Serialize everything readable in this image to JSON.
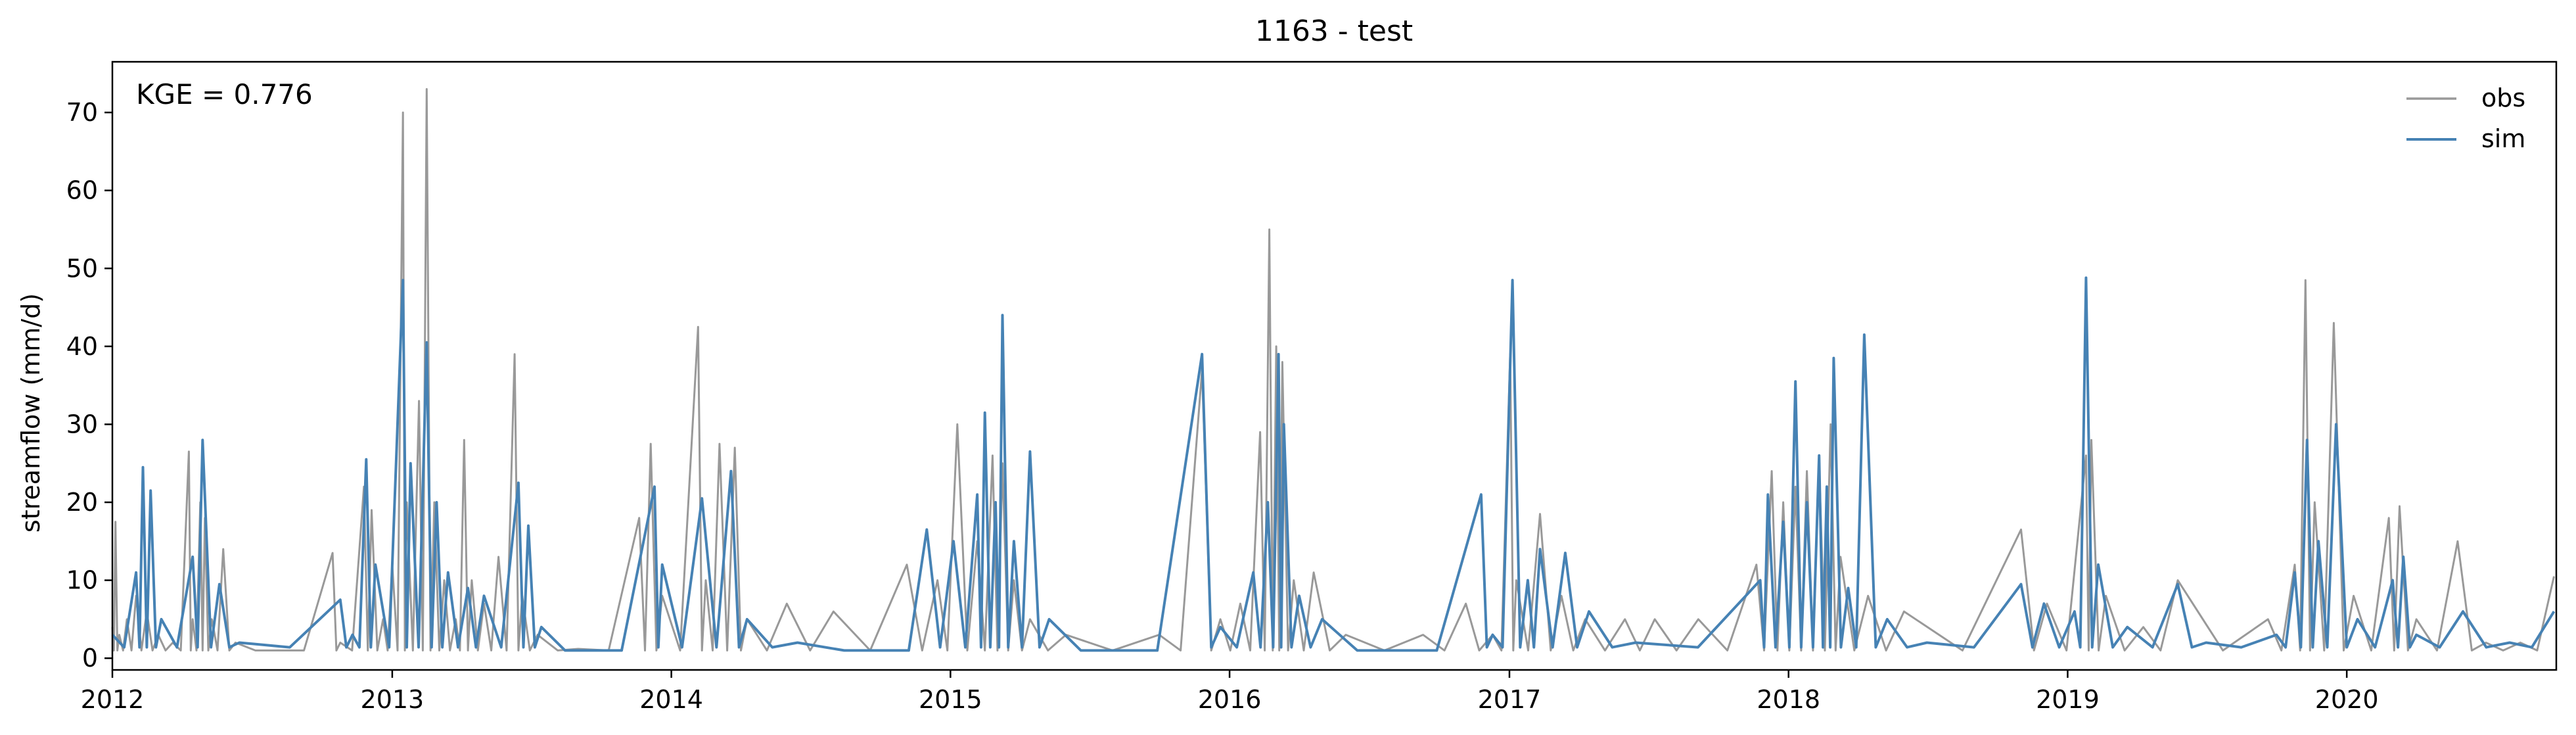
{
  "chart_data": {
    "type": "line",
    "title": "1163 - test",
    "ylabel": "streamflow (mm/d)",
    "xlabel": "",
    "annotation": "KGE = 0.776",
    "xlim": [
      "2012-01-01",
      "2020-10-01"
    ],
    "ylim": [
      -1.5,
      76.5
    ],
    "x_ticks": [
      "2012",
      "2013",
      "2014",
      "2015",
      "2016",
      "2017",
      "2018",
      "2019",
      "2020"
    ],
    "y_ticks": [
      0,
      10,
      20,
      30,
      40,
      50,
      60,
      70
    ],
    "legend_position": "top-right",
    "grid": false,
    "series": [
      {
        "name": "obs",
        "color": "#999999",
        "points": [
          [
            "2012-01-01",
            4
          ],
          [
            "2012-01-05",
            17.5
          ],
          [
            "2012-01-10",
            3
          ],
          [
            "2012-01-20",
            5
          ],
          [
            "2012-02-01",
            8
          ],
          [
            "2012-02-15",
            6
          ],
          [
            "2012-03-01",
            3
          ],
          [
            "2012-03-20",
            2
          ],
          [
            "2012-04-10",
            26.5
          ],
          [
            "2012-04-15",
            5
          ],
          [
            "2012-04-25",
            20
          ],
          [
            "2012-05-01",
            18
          ],
          [
            "2012-05-10",
            5
          ],
          [
            "2012-05-25",
            14
          ],
          [
            "2012-06-10",
            2
          ],
          [
            "2012-08-01",
            1
          ],
          [
            "2012-10-15",
            13.5
          ],
          [
            "2012-10-25",
            2
          ],
          [
            "2012-11-25",
            22
          ],
          [
            "2012-12-05",
            19
          ],
          [
            "2012-12-20",
            5
          ],
          [
            "2013-01-01",
            12
          ],
          [
            "2013-01-15",
            70
          ],
          [
            "2013-01-20",
            20
          ],
          [
            "2013-02-05",
            33
          ],
          [
            "2013-02-15",
            73
          ],
          [
            "2013-02-25",
            20
          ],
          [
            "2013-03-10",
            10
          ],
          [
            "2013-03-25",
            5
          ],
          [
            "2013-04-05",
            28
          ],
          [
            "2013-04-15",
            10
          ],
          [
            "2013-05-01",
            7
          ],
          [
            "2013-05-20",
            13
          ],
          [
            "2013-06-10",
            39
          ],
          [
            "2013-06-20",
            8
          ],
          [
            "2013-07-10",
            3
          ],
          [
            "2013-09-01",
            1.2
          ],
          [
            "2013-11-20",
            18
          ],
          [
            "2013-12-05",
            27.5
          ],
          [
            "2013-12-20",
            8
          ],
          [
            "2014-02-05",
            42.5
          ],
          [
            "2014-02-15",
            10
          ],
          [
            "2014-03-05",
            27.5
          ],
          [
            "2014-03-25",
            27
          ],
          [
            "2014-04-10",
            5
          ],
          [
            "2014-06-01",
            7
          ],
          [
            "2014-08-01",
            6
          ],
          [
            "2014-11-05",
            12
          ],
          [
            "2014-12-15",
            10
          ],
          [
            "2015-01-10",
            30
          ],
          [
            "2015-02-05",
            15
          ],
          [
            "2015-02-25",
            26
          ],
          [
            "2015-03-10",
            25
          ],
          [
            "2015-03-25",
            10
          ],
          [
            "2015-04-15",
            5
          ],
          [
            "2015-06-01",
            3
          ],
          [
            "2015-10-01",
            3
          ],
          [
            "2015-11-26",
            37
          ],
          [
            "2015-12-20",
            5
          ],
          [
            "2016-01-15",
            7
          ],
          [
            "2016-02-10",
            29
          ],
          [
            "2016-02-22",
            55
          ],
          [
            "2016-03-02",
            40
          ],
          [
            "2016-03-10",
            38
          ],
          [
            "2016-03-25",
            10
          ],
          [
            "2016-04-20",
            11
          ],
          [
            "2016-06-01",
            3
          ],
          [
            "2016-09-10",
            3
          ],
          [
            "2016-11-05",
            7
          ],
          [
            "2016-12-10",
            3
          ],
          [
            "2017-01-02",
            39
          ],
          [
            "2017-01-10",
            10
          ],
          [
            "2017-02-10",
            18.5
          ],
          [
            "2017-03-10",
            8
          ],
          [
            "2017-04-10",
            5
          ],
          [
            "2017-06-01",
            5
          ],
          [
            "2017-07-10",
            5
          ],
          [
            "2017-09-05",
            5
          ],
          [
            "2017-11-20",
            12
          ],
          [
            "2017-12-10",
            24
          ],
          [
            "2017-12-25",
            20
          ],
          [
            "2018-01-10",
            22
          ],
          [
            "2018-01-25",
            24
          ],
          [
            "2018-02-10",
            25
          ],
          [
            "2018-02-25",
            30
          ],
          [
            "2018-03-10",
            13
          ],
          [
            "2018-04-15",
            8
          ],
          [
            "2018-06-01",
            6
          ],
          [
            "2018-11-01",
            16.5
          ],
          [
            "2018-12-05",
            7
          ],
          [
            "2019-01-25",
            26
          ],
          [
            "2019-02-01",
            28
          ],
          [
            "2019-02-20",
            8
          ],
          [
            "2019-04-10",
            4
          ],
          [
            "2019-05-25",
            10
          ],
          [
            "2019-09-20",
            5
          ],
          [
            "2019-10-25",
            12
          ],
          [
            "2019-11-08",
            48.5
          ],
          [
            "2019-11-20",
            20
          ],
          [
            "2019-12-15",
            43
          ],
          [
            "2020-01-10",
            8
          ],
          [
            "2020-02-25",
            18
          ],
          [
            "2020-03-10",
            19.5
          ],
          [
            "2020-04-01",
            5
          ],
          [
            "2020-05-25",
            15
          ],
          [
            "2020-07-01",
            2
          ],
          [
            "2020-08-15",
            2
          ],
          [
            "2020-09-28",
            10.5
          ]
        ]
      },
      {
        "name": "sim",
        "color": "#4682b4",
        "points": [
          [
            "2012-01-01",
            3
          ],
          [
            "2012-02-01",
            11
          ],
          [
            "2012-02-10",
            24.5
          ],
          [
            "2012-02-20",
            21.5
          ],
          [
            "2012-03-05",
            5
          ],
          [
            "2012-04-15",
            13
          ],
          [
            "2012-04-28",
            28
          ],
          [
            "2012-05-20",
            9.5
          ],
          [
            "2012-06-15",
            2
          ],
          [
            "2012-10-25",
            7.5
          ],
          [
            "2012-11-10",
            3
          ],
          [
            "2012-11-28",
            25.5
          ],
          [
            "2012-12-10",
            12
          ],
          [
            "2013-01-15",
            48.5
          ],
          [
            "2013-01-25",
            25
          ],
          [
            "2013-02-15",
            40.5
          ],
          [
            "2013-02-28",
            20
          ],
          [
            "2013-03-15",
            11
          ],
          [
            "2013-04-10",
            9
          ],
          [
            "2013-05-01",
            8
          ],
          [
            "2013-06-15",
            22.5
          ],
          [
            "2013-06-28",
            17
          ],
          [
            "2013-07-15",
            4
          ],
          [
            "2013-09-15",
            1
          ],
          [
            "2013-12-10",
            22
          ],
          [
            "2013-12-20",
            12
          ],
          [
            "2014-02-10",
            20.5
          ],
          [
            "2014-03-20",
            24
          ],
          [
            "2014-04-10",
            5
          ],
          [
            "2014-06-15",
            2
          ],
          [
            "2014-10-15",
            1
          ],
          [
            "2014-12-01",
            16.5
          ],
          [
            "2015-01-05",
            15
          ],
          [
            "2015-02-05",
            21
          ],
          [
            "2015-02-15",
            31.5
          ],
          [
            "2015-03-01",
            20
          ],
          [
            "2015-03-10",
            44
          ],
          [
            "2015-03-25",
            15
          ],
          [
            "2015-04-15",
            26.5
          ],
          [
            "2015-05-10",
            5
          ],
          [
            "2015-08-01",
            1
          ],
          [
            "2015-11-26",
            39
          ],
          [
            "2015-12-20",
            4
          ],
          [
            "2016-02-01",
            11
          ],
          [
            "2016-02-20",
            20
          ],
          [
            "2016-03-05",
            39
          ],
          [
            "2016-03-12",
            30
          ],
          [
            "2016-04-01",
            8
          ],
          [
            "2016-05-01",
            5
          ],
          [
            "2016-08-01",
            1
          ],
          [
            "2016-11-25",
            21
          ],
          [
            "2016-12-10",
            3
          ],
          [
            "2017-01-05",
            48.5
          ],
          [
            "2017-01-25",
            10
          ],
          [
            "2017-02-10",
            14
          ],
          [
            "2017-03-15",
            13.5
          ],
          [
            "2017-04-15",
            6
          ],
          [
            "2017-06-15",
            2
          ],
          [
            "2017-11-25",
            10
          ],
          [
            "2017-12-05",
            21
          ],
          [
            "2017-12-25",
            17.5
          ],
          [
            "2018-01-10",
            35.5
          ],
          [
            "2018-01-25",
            20
          ],
          [
            "2018-02-10",
            26
          ],
          [
            "2018-02-20",
            22
          ],
          [
            "2018-03-01",
            38.5
          ],
          [
            "2018-03-20",
            9
          ],
          [
            "2018-04-10",
            41.5
          ],
          [
            "2018-05-10",
            5
          ],
          [
            "2018-07-01",
            2
          ],
          [
            "2018-11-01",
            9.5
          ],
          [
            "2018-12-01",
            7
          ],
          [
            "2019-01-10",
            6
          ],
          [
            "2019-01-25",
            48.8
          ],
          [
            "2019-02-10",
            12
          ],
          [
            "2019-03-20",
            4
          ],
          [
            "2019-05-25",
            9.5
          ],
          [
            "2019-07-01",
            2
          ],
          [
            "2019-10-01",
            3
          ],
          [
            "2019-10-25",
            11
          ],
          [
            "2019-11-10",
            28
          ],
          [
            "2019-11-25",
            15
          ],
          [
            "2019-12-18",
            30
          ],
          [
            "2020-01-15",
            5
          ],
          [
            "2020-03-01",
            10
          ],
          [
            "2020-03-15",
            13
          ],
          [
            "2020-04-01",
            3
          ],
          [
            "2020-06-01",
            6
          ],
          [
            "2020-08-01",
            2
          ],
          [
            "2020-09-28",
            6
          ]
        ]
      }
    ]
  }
}
